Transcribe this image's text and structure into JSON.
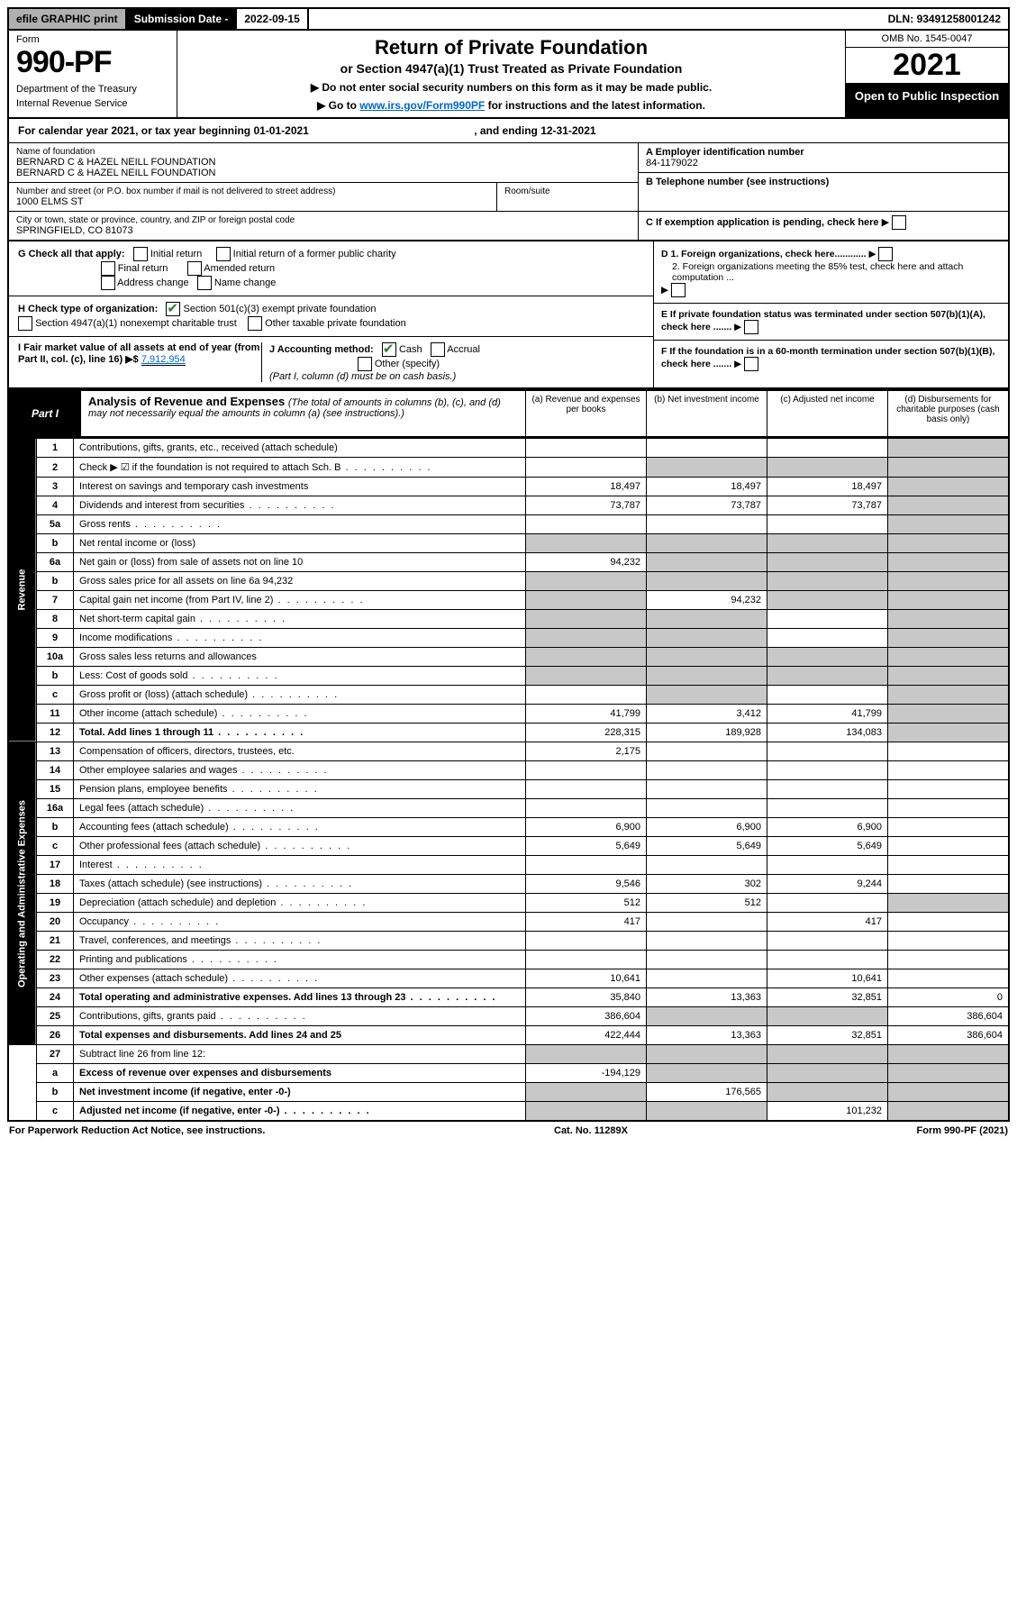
{
  "topbar": {
    "efile": "efile GRAPHIC print",
    "sub_date_label": "Submission Date - ",
    "sub_date": "2022-09-15",
    "dln_label": "DLN: ",
    "dln": "93491258001242"
  },
  "header": {
    "form_label": "Form",
    "form_no": "990-PF",
    "dept": "Department of the Treasury",
    "irs": "Internal Revenue Service",
    "title": "Return of Private Foundation",
    "subtitle": "or Section 4947(a)(1) Trust Treated as Private Foundation",
    "note1": "▶ Do not enter social security numbers on this form as it may be made public.",
    "note2_pre": "▶ Go to ",
    "note2_link": "www.irs.gov/Form990PF",
    "note2_post": " for instructions and the latest information.",
    "omb": "OMB No. 1545-0047",
    "year": "2021",
    "open": "Open to Public Inspection"
  },
  "cal_year": {
    "pre": "For calendar year 2021, or tax year beginning ",
    "begin": "01-01-2021",
    "mid": " , and ending ",
    "end": "12-31-2021"
  },
  "foundation": {
    "name_lbl": "Name of foundation",
    "name1": "BERNARD C & HAZEL NEILL FOUNDATION",
    "name2": "BERNARD C & HAZEL NEILL FOUNDATION",
    "addr_lbl": "Number and street (or P.O. box number if mail is not delivered to street address)",
    "addr": "1000 ELMS ST",
    "room_lbl": "Room/suite",
    "city_lbl": "City or town, state or province, country, and ZIP or foreign postal code",
    "city": "SPRINGFIELD, CO  81073",
    "ein_lbl": "A Employer identification number",
    "ein": "84-1179022",
    "phone_lbl": "B Telephone number (see instructions)",
    "c_lbl": "C If exemption application is pending, check here",
    "d1_lbl": "D 1. Foreign organizations, check here............",
    "d2_lbl": "2. Foreign organizations meeting the 85% test, check here and attach computation ...",
    "e_lbl": "E If private foundation status was terminated under section 507(b)(1)(A), check here .......",
    "f_lbl": "F If the foundation is in a 60-month termination under section 507(b)(1)(B), check here .......",
    "g_lbl": "G Check all that apply:",
    "g_initial": "Initial return",
    "g_initial_former": "Initial return of a former public charity",
    "g_final": "Final return",
    "g_amended": "Amended return",
    "g_addr": "Address change",
    "g_name": "Name change",
    "h_lbl": "H Check type of organization:",
    "h_501": "Section 501(c)(3) exempt private foundation",
    "h_4947": "Section 4947(a)(1) nonexempt charitable trust",
    "h_other": "Other taxable private foundation",
    "i_lbl": "I Fair market value of all assets at end of year (from Part II, col. (c), line 16) ▶$ ",
    "i_val": "7,912,954",
    "j_lbl": "J Accounting method:",
    "j_cash": "Cash",
    "j_accrual": "Accrual",
    "j_other": "Other (specify)",
    "j_note": "(Part I, column (d) must be on cash basis.)"
  },
  "part1": {
    "label": "Part I",
    "title": "Analysis of Revenue and Expenses ",
    "title_note": "(The total of amounts in columns (b), (c), and (d) may not necessarily equal the amounts in column (a) (see instructions).)",
    "col_a": "(a) Revenue and expenses per books",
    "col_b": "(b) Net investment income",
    "col_c": "(c) Adjusted net income",
    "col_d": "(d) Disbursements for charitable purposes (cash basis only)"
  },
  "side_labels": {
    "revenue": "Revenue",
    "expenses": "Operating and Administrative Expenses"
  },
  "rows": [
    {
      "n": "1",
      "d": "Contributions, gifts, grants, etc., received (attach schedule)",
      "a": "",
      "b": "",
      "c": "",
      "ga": false,
      "gb": false,
      "gc": false,
      "gd": true
    },
    {
      "n": "2",
      "d": "Check ▶ ☑ if the foundation is not required to attach Sch. B",
      "a": "",
      "b": "",
      "c": "",
      "ga": false,
      "gb": true,
      "gc": true,
      "gd": true,
      "dots": true
    },
    {
      "n": "3",
      "d": "Interest on savings and temporary cash investments",
      "a": "18,497",
      "b": "18,497",
      "c": "18,497",
      "ga": false,
      "gb": false,
      "gc": false,
      "gd": true
    },
    {
      "n": "4",
      "d": "Dividends and interest from securities",
      "a": "73,787",
      "b": "73,787",
      "c": "73,787",
      "ga": false,
      "gb": false,
      "gc": false,
      "gd": true,
      "dots": true
    },
    {
      "n": "5a",
      "d": "Gross rents",
      "a": "",
      "b": "",
      "c": "",
      "ga": false,
      "gb": false,
      "gc": false,
      "gd": true,
      "dots": true
    },
    {
      "n": "b",
      "d": "Net rental income or (loss)",
      "a": "",
      "b": "",
      "c": "",
      "ga": true,
      "gb": true,
      "gc": true,
      "gd": true
    },
    {
      "n": "6a",
      "d": "Net gain or (loss) from sale of assets not on line 10",
      "a": "94,232",
      "b": "",
      "c": "",
      "ga": false,
      "gb": true,
      "gc": true,
      "gd": true
    },
    {
      "n": "b",
      "d": "Gross sales price for all assets on line 6a  94,232",
      "a": "",
      "b": "",
      "c": "",
      "ga": true,
      "gb": true,
      "gc": true,
      "gd": true
    },
    {
      "n": "7",
      "d": "Capital gain net income (from Part IV, line 2)",
      "a": "",
      "b": "94,232",
      "c": "",
      "ga": true,
      "gb": false,
      "gc": true,
      "gd": true,
      "dots": true
    },
    {
      "n": "8",
      "d": "Net short-term capital gain",
      "a": "",
      "b": "",
      "c": "",
      "ga": true,
      "gb": true,
      "gc": false,
      "gd": true,
      "dots": true
    },
    {
      "n": "9",
      "d": "Income modifications",
      "a": "",
      "b": "",
      "c": "",
      "ga": true,
      "gb": true,
      "gc": false,
      "gd": true,
      "dots": true
    },
    {
      "n": "10a",
      "d": "Gross sales less returns and allowances",
      "a": "",
      "b": "",
      "c": "",
      "ga": true,
      "gb": true,
      "gc": true,
      "gd": true
    },
    {
      "n": "b",
      "d": "Less: Cost of goods sold",
      "a": "",
      "b": "",
      "c": "",
      "ga": true,
      "gb": true,
      "gc": true,
      "gd": true,
      "dots": true
    },
    {
      "n": "c",
      "d": "Gross profit or (loss) (attach schedule)",
      "a": "",
      "b": "",
      "c": "",
      "ga": false,
      "gb": true,
      "gc": false,
      "gd": true,
      "dots": true
    },
    {
      "n": "11",
      "d": "Other income (attach schedule)",
      "a": "41,799",
      "b": "3,412",
      "c": "41,799",
      "ga": false,
      "gb": false,
      "gc": false,
      "gd": true,
      "dots": true
    },
    {
      "n": "12",
      "d": "Total. Add lines 1 through 11",
      "a": "228,315",
      "b": "189,928",
      "c": "134,083",
      "ga": false,
      "gb": false,
      "gc": false,
      "gd": true,
      "bold": true,
      "dots": true
    }
  ],
  "exp_rows": [
    {
      "n": "13",
      "d": "Compensation of officers, directors, trustees, etc.",
      "a": "2,175",
      "b": "",
      "c": "",
      "dv": ""
    },
    {
      "n": "14",
      "d": "Other employee salaries and wages",
      "a": "",
      "b": "",
      "c": "",
      "dv": "",
      "dots": true
    },
    {
      "n": "15",
      "d": "Pension plans, employee benefits",
      "a": "",
      "b": "",
      "c": "",
      "dv": "",
      "dots": true
    },
    {
      "n": "16a",
      "d": "Legal fees (attach schedule)",
      "a": "",
      "b": "",
      "c": "",
      "dv": "",
      "dots": true
    },
    {
      "n": "b",
      "d": "Accounting fees (attach schedule)",
      "a": "6,900",
      "b": "6,900",
      "c": "6,900",
      "dv": "",
      "dots": true
    },
    {
      "n": "c",
      "d": "Other professional fees (attach schedule)",
      "a": "5,649",
      "b": "5,649",
      "c": "5,649",
      "dv": "",
      "dots": true
    },
    {
      "n": "17",
      "d": "Interest",
      "a": "",
      "b": "",
      "c": "",
      "dv": "",
      "dots": true
    },
    {
      "n": "18",
      "d": "Taxes (attach schedule) (see instructions)",
      "a": "9,546",
      "b": "302",
      "c": "9,244",
      "dv": "",
      "dots": true
    },
    {
      "n": "19",
      "d": "Depreciation (attach schedule) and depletion",
      "a": "512",
      "b": "512",
      "c": "",
      "dv": "",
      "gd": true,
      "dots": true
    },
    {
      "n": "20",
      "d": "Occupancy",
      "a": "417",
      "b": "",
      "c": "417",
      "dv": "",
      "dots": true
    },
    {
      "n": "21",
      "d": "Travel, conferences, and meetings",
      "a": "",
      "b": "",
      "c": "",
      "dv": "",
      "dots": true
    },
    {
      "n": "22",
      "d": "Printing and publications",
      "a": "",
      "b": "",
      "c": "",
      "dv": "",
      "dots": true
    },
    {
      "n": "23",
      "d": "Other expenses (attach schedule)",
      "a": "10,641",
      "b": "",
      "c": "10,641",
      "dv": "",
      "dots": true
    },
    {
      "n": "24",
      "d": "Total operating and administrative expenses. Add lines 13 through 23",
      "a": "35,840",
      "b": "13,363",
      "c": "32,851",
      "dv": "0",
      "bold": true,
      "dots": true
    },
    {
      "n": "25",
      "d": "Contributions, gifts, grants paid",
      "a": "386,604",
      "b": "",
      "c": "",
      "dv": "386,604",
      "gb": true,
      "gc": true,
      "dots": true
    },
    {
      "n": "26",
      "d": "Total expenses and disbursements. Add lines 24 and 25",
      "a": "422,444",
      "b": "13,363",
      "c": "32,851",
      "dv": "386,604",
      "bold": true
    }
  ],
  "bottom_rows": [
    {
      "n": "27",
      "d": "Subtract line 26 from line 12:",
      "a": "",
      "b": "",
      "c": "",
      "dv": "",
      "ga": true,
      "gb": true,
      "gc": true,
      "gd": true
    },
    {
      "n": "a",
      "d": "Excess of revenue over expenses and disbursements",
      "a": "-194,129",
      "b": "",
      "c": "",
      "dv": "",
      "gb": true,
      "gc": true,
      "gd": true,
      "bold": true
    },
    {
      "n": "b",
      "d": "Net investment income (if negative, enter -0-)",
      "a": "",
      "b": "176,565",
      "c": "",
      "dv": "",
      "ga": true,
      "gc": true,
      "gd": true,
      "bold": true
    },
    {
      "n": "c",
      "d": "Adjusted net income (if negative, enter -0-)",
      "a": "",
      "b": "",
      "c": "101,232",
      "dv": "",
      "ga": true,
      "gb": true,
      "gd": true,
      "bold": true,
      "dots": true
    }
  ],
  "footer": {
    "left": "For Paperwork Reduction Act Notice, see instructions.",
    "mid": "Cat. No. 11289X",
    "right": "Form 990-PF (2021)"
  },
  "colors": {
    "black": "#000000",
    "grey": "#c8c8c8",
    "btn_grey": "#b0b0b0",
    "link": "#0066cc",
    "check_green": "#2e7d32"
  }
}
